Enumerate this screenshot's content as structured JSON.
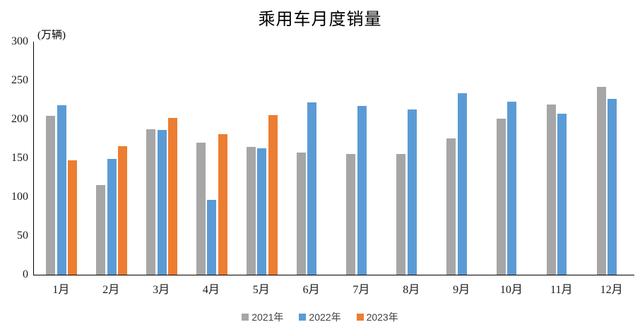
{
  "chart_data": {
    "type": "bar",
    "title": "乘用车月度销量",
    "unit_label": "(万辆)",
    "categories": [
      "1月",
      "2月",
      "3月",
      "4月",
      "5月",
      "6月",
      "7月",
      "8月",
      "9月",
      "10月",
      "11月",
      "12月"
    ],
    "series": [
      {
        "name": "2021年",
        "color": "#A6A6A6",
        "values": [
          204.5,
          115.6,
          187.4,
          170.4,
          164.6,
          156.9,
          155.1,
          155.2,
          175.1,
          200.7,
          219.2,
          242.2
        ]
      },
      {
        "name": "2022年",
        "color": "#5B9BD5",
        "values": [
          218.6,
          148.7,
          186.4,
          96.5,
          162.3,
          222.2,
          217.4,
          212.5,
          233.2,
          223.1,
          207.5,
          226.3
        ]
      },
      {
        "name": "2023年",
        "color": "#ED7D31",
        "values": [
          146.9,
          165.3,
          201.7,
          181.1,
          205.1,
          null,
          null,
          null,
          null,
          null,
          null,
          null
        ]
      }
    ],
    "ylim": [
      0,
      300
    ],
    "yticks": [
      0,
      50,
      100,
      150,
      200,
      250,
      300
    ],
    "grid": false,
    "legend_position": "bottom",
    "axis_color": "#000000"
  }
}
